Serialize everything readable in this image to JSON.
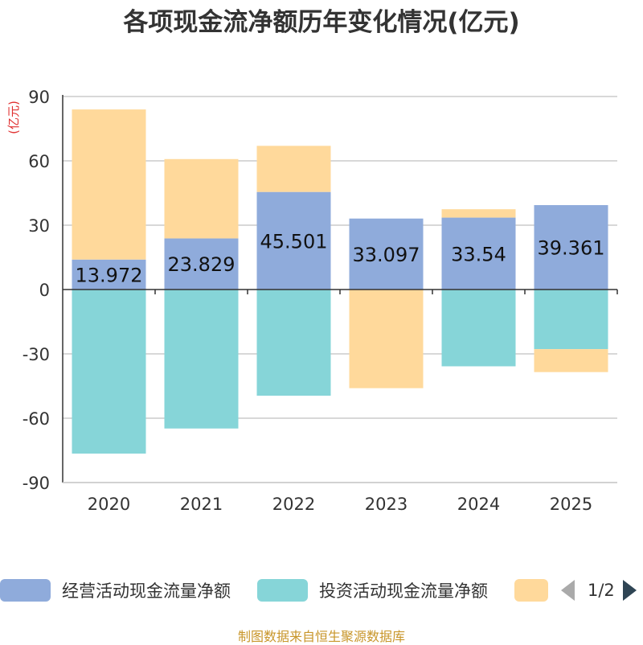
{
  "title": "各项现金流净额历年变化情况(亿元)",
  "chart_data": {
    "type": "bar",
    "stacked": true,
    "unit": "(亿元)",
    "categories": [
      "2020",
      "2021",
      "2022",
      "2023",
      "2024",
      "2025"
    ],
    "ylim": [
      -90,
      90
    ],
    "yticks": [
      90,
      60,
      30,
      0,
      -30,
      -60,
      -90
    ],
    "grid": true,
    "legend_position": "bottom",
    "series": [
      {
        "name": "经营活动现金流量净额",
        "color": "#8fabdb",
        "values": [
          13.972,
          23.829,
          45.501,
          33.097,
          33.54,
          39.361
        ],
        "labels": [
          "13.972",
          "23.829",
          "45.501",
          "33.097",
          "33.54",
          "39.361"
        ]
      },
      {
        "name": "投资活动现金流量净额",
        "color": "#86d5d8",
        "values": [
          -76.5,
          -64.8,
          -49.5,
          0,
          -35.8,
          -27.8
        ]
      },
      {
        "name": "",
        "color": "#ffd99b",
        "values": [
          70,
          37,
          21.5,
          -46,
          3.9,
          -10.7
        ]
      }
    ]
  },
  "legend": {
    "items": [
      {
        "label": "经营活动现金流量净额",
        "color": "#8fabdb"
      },
      {
        "label": "投资活动现金流量净额",
        "color": "#86d5d8"
      },
      {
        "label": "",
        "color": "#ffd99b"
      }
    ],
    "page": "1/2"
  },
  "footer": "制图数据来自恒生聚源数据库"
}
